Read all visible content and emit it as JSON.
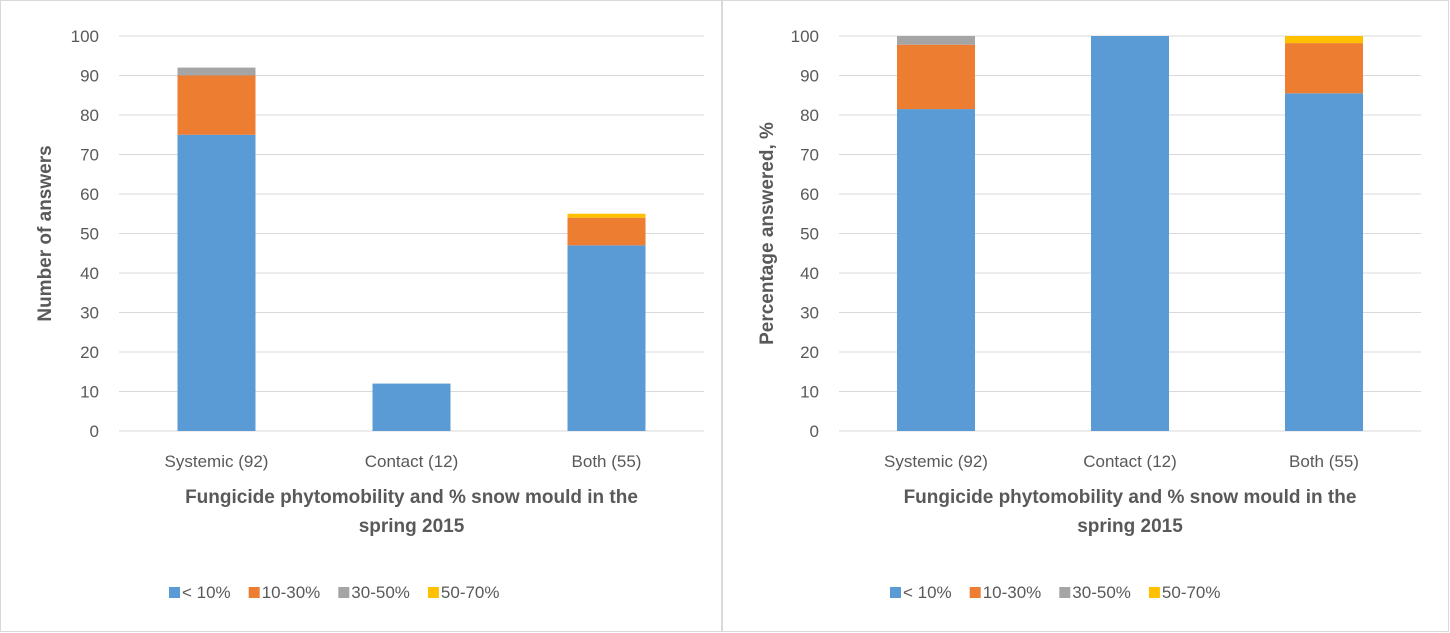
{
  "colors": {
    "lt10": "#5b9bd5",
    "p10_30": "#ed7d31",
    "p30_50": "#a5a5a5",
    "p50_70": "#ffc000",
    "gridline": "#d9d9d9",
    "text": "#595959"
  },
  "chart_data": [
    {
      "type": "bar",
      "stacked": true,
      "categories": [
        "Systemic (92)",
        "Contact (12)",
        "Both (55)"
      ],
      "series": [
        {
          "name": "< 10%",
          "values": [
            75,
            12,
            47
          ]
        },
        {
          "name": "10-30%",
          "values": [
            15,
            0,
            7
          ]
        },
        {
          "name": "30-50%",
          "values": [
            2,
            0,
            0
          ]
        },
        {
          "name": "50-70%",
          "values": [
            0,
            0,
            1
          ]
        }
      ],
      "xlabel": [
        "Fungicide phytomobility and % snow mould in the",
        "spring 2015"
      ],
      "ylabel": "Number of answers",
      "ylim": [
        0,
        100
      ],
      "yticks": [
        "0",
        "10",
        "20",
        "30",
        "40",
        "50",
        "60",
        "70",
        "80",
        "90",
        "100"
      ],
      "grid": true,
      "legend": "bottom"
    },
    {
      "type": "bar",
      "stacked": true,
      "categories": [
        "Systemic (92)",
        "Contact (12)",
        "Both (55)"
      ],
      "series": [
        {
          "name": "< 10%",
          "values": [
            81.5,
            100,
            85.5
          ]
        },
        {
          "name": "10-30%",
          "values": [
            16.3,
            0,
            12.7
          ]
        },
        {
          "name": "30-50%",
          "values": [
            2.2,
            0,
            0
          ]
        },
        {
          "name": "50-70%",
          "values": [
            0,
            0,
            1.8
          ]
        }
      ],
      "xlabel": [
        "Fungicide phytomobility and % snow mould in the",
        "spring 2015"
      ],
      "ylabel": "Percentage answered, %",
      "ylim": [
        0,
        100
      ],
      "yticks": [
        "0",
        "10",
        "20",
        "30",
        "40",
        "50",
        "60",
        "70",
        "80",
        "90",
        "100"
      ],
      "grid": true,
      "legend": "bottom"
    }
  ]
}
